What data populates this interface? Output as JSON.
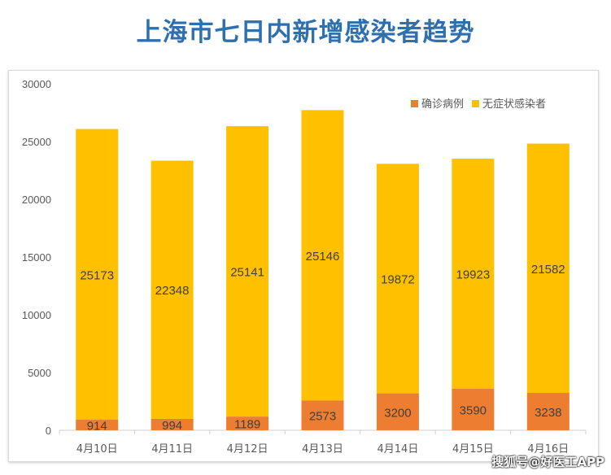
{
  "chart_data": {
    "type": "bar",
    "stacked": true,
    "title": "上海市七日内新增感染者趋势",
    "categories": [
      "4月10日",
      "4月11日",
      "4月12日",
      "4月13日",
      "4月14日",
      "4月15日",
      "4月16日"
    ],
    "series": [
      {
        "name": "确诊病例",
        "color": "#ed7d31",
        "values": [
          914,
          994,
          1189,
          2573,
          3200,
          3590,
          3238
        ]
      },
      {
        "name": "无症状感染者",
        "color": "#ffc000",
        "values": [
          25173,
          22348,
          25141,
          25146,
          19872,
          19923,
          21582
        ]
      }
    ],
    "ylim": [
      0,
      30000
    ],
    "yticks": [
      0,
      5000,
      10000,
      15000,
      20000,
      25000,
      30000
    ],
    "grid": false,
    "legend": "top-right",
    "xlabel": "",
    "ylabel": ""
  },
  "watermark": "搜狐号@好医工APP"
}
